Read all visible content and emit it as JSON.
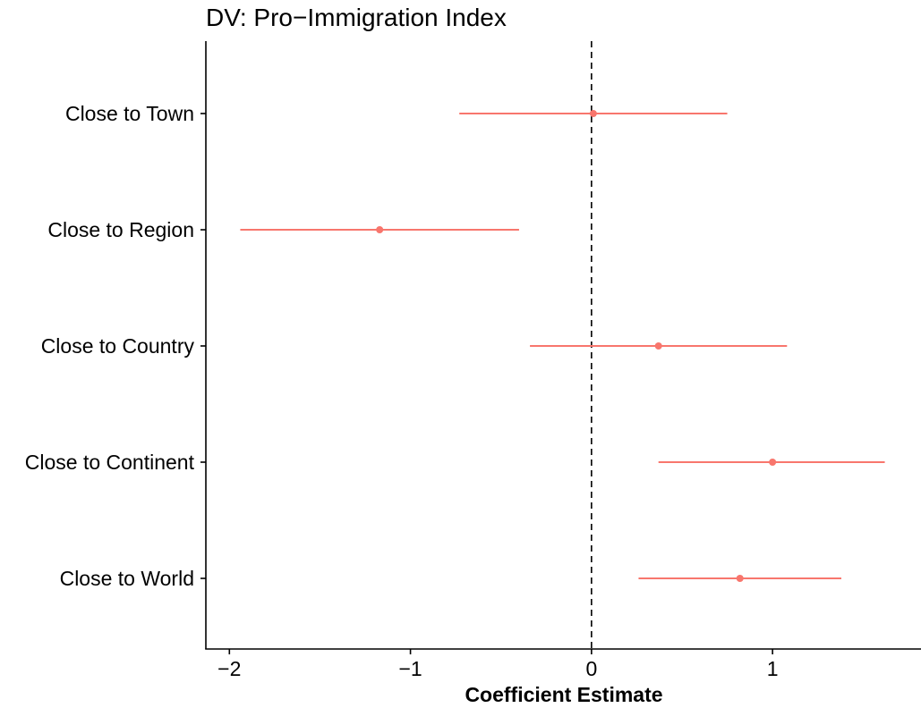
{
  "chart_data": {
    "type": "scatter",
    "subtype": "coefficient-plot",
    "title": "DV: Pro−Immigration Index",
    "xlabel": "Coefficient Estimate",
    "ylabel": "",
    "xlim": [
      -2.13,
      1.82
    ],
    "xticks": [
      -2,
      -1,
      0,
      1
    ],
    "xtick_labels": [
      "−2",
      "−1",
      "0",
      "1"
    ],
    "reference_line": {
      "x": 0,
      "style": "dashed"
    },
    "grid": false,
    "legend": "none",
    "color": "#F8766D",
    "categories": [
      "Close to Town",
      "Close to Region",
      "Close to Country",
      "Close to Continent",
      "Close to World"
    ],
    "estimates": [
      0.01,
      -1.17,
      0.37,
      1.0,
      0.82
    ],
    "ci_low": [
      -0.73,
      -1.94,
      -0.34,
      0.37,
      0.26
    ],
    "ci_high": [
      0.75,
      -0.4,
      1.08,
      1.62,
      1.38
    ]
  }
}
